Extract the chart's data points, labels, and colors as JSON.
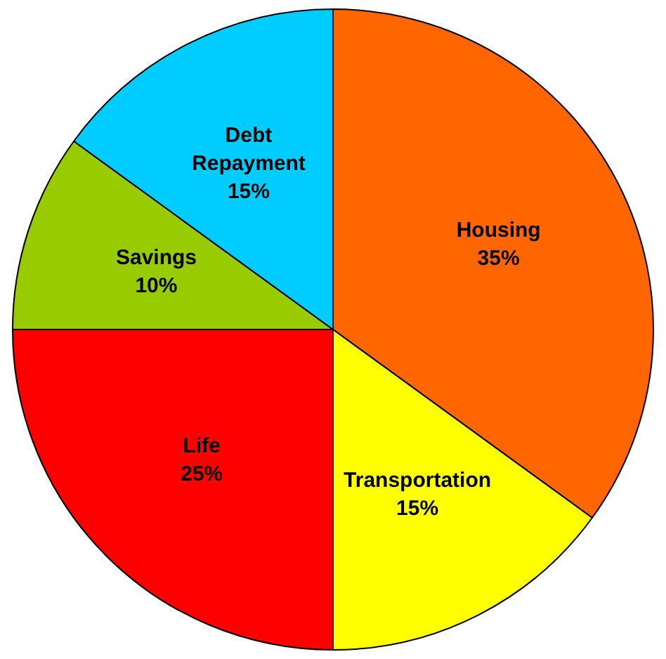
{
  "chart_data": {
    "type": "pie",
    "categories": [
      "Housing",
      "Transportation",
      "Life",
      "Savings",
      "Debt Repayment"
    ],
    "values": [
      35,
      15,
      25,
      10,
      15
    ],
    "colors": [
      "#ff6600",
      "#ffff00",
      "#ff0000",
      "#99cc00",
      "#00ccff"
    ],
    "value_labels": [
      "35%",
      "15%",
      "25%",
      "10%",
      "15%"
    ],
    "legend": false
  }
}
